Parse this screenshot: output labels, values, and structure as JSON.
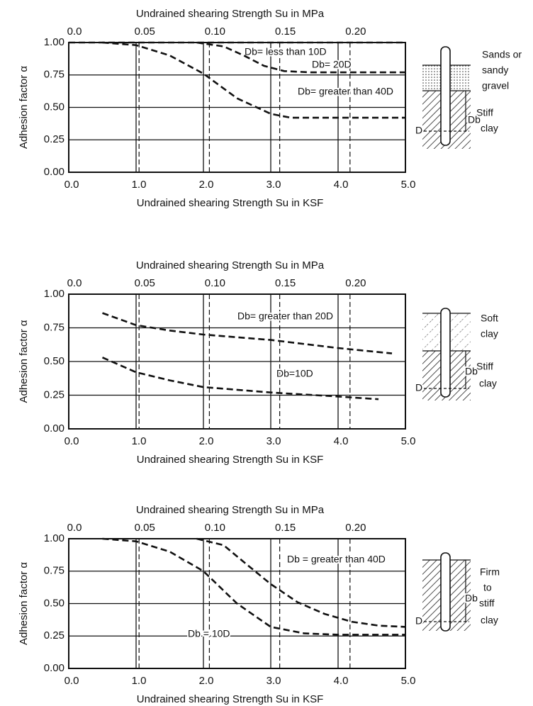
{
  "chart_data": [
    {
      "type": "line",
      "x_label": "Undrained shearing Strength Su in KSF",
      "x2_label": "Undrained shearing Strength Su in MPa",
      "y_label": "Adhesion factor α",
      "xlim": [
        0,
        5
      ],
      "xticks": [
        {
          "value": 0,
          "label": "0.0"
        },
        {
          "value": 1,
          "label": "1.0"
        },
        {
          "value": 2,
          "label": "2.0"
        },
        {
          "value": 3,
          "label": "3.0"
        },
        {
          "value": 4,
          "label": "4.0"
        },
        {
          "value": 5,
          "label": "5.0"
        }
      ],
      "x2lim": [
        0,
        0.2394
      ],
      "x2ticks": [
        {
          "value": 0,
          "label": "0.0"
        },
        0.05,
        {
          "value": 0.1,
          "label": "0.10"
        },
        0.15,
        {
          "value": 0.2,
          "label": "0.20"
        }
      ],
      "ylim": [
        0,
        1
      ],
      "yticks": [
        {
          "value": 0,
          "label": "0.00"
        },
        0.25,
        {
          "value": 0.5,
          "label": "0.50"
        },
        0.75,
        {
          "value": 1,
          "label": "1.00"
        }
      ],
      "grid": true,
      "series": [
        {
          "name": "Db= less than 10D",
          "color": "#111111",
          "x": [
            0,
            5
          ],
          "values": [
            1,
            1
          ]
        },
        {
          "name": "Db= 20D",
          "color": "#111111",
          "x": [
            1.9,
            2.3,
            2.6,
            2.9,
            3.2,
            3.6,
            5.0
          ],
          "values": [
            1.0,
            0.97,
            0.9,
            0.82,
            0.78,
            0.77,
            0.77
          ]
        },
        {
          "name": "Db= greater than 40D",
          "color": "#111111",
          "x": [
            0.5,
            1.0,
            1.5,
            2.0,
            2.5,
            3.0,
            3.3,
            5.0
          ],
          "values": [
            1.0,
            0.98,
            0.9,
            0.76,
            0.57,
            0.45,
            0.42,
            0.42
          ]
        }
      ],
      "side_labels": [
        "Sands or",
        "sandy",
        "gravel",
        "Stiff",
        "clay",
        "D",
        "Db"
      ]
    },
    {
      "type": "line",
      "x_label": "Undrained shearing Strength Su in KSF",
      "x2_label": "Undrained shearing Strength Su in MPa",
      "y_label": "Adhesion factor α",
      "xlim": [
        0,
        5
      ],
      "xticks": [
        {
          "value": 0,
          "label": "0.0"
        },
        {
          "value": 1,
          "label": "1.0"
        },
        {
          "value": 2,
          "label": "2.0"
        },
        {
          "value": 3,
          "label": "3.0"
        },
        {
          "value": 4,
          "label": "4.0"
        },
        {
          "value": 5,
          "label": "5.0"
        }
      ],
      "x2lim": [
        0,
        0.2394
      ],
      "x2ticks": [
        {
          "value": 0,
          "label": "0.0"
        },
        0.05,
        {
          "value": 0.1,
          "label": "0.10"
        },
        0.15,
        {
          "value": 0.2,
          "label": "0.20"
        }
      ],
      "ylim": [
        0,
        1
      ],
      "yticks": [
        {
          "value": 0,
          "label": "0.00"
        },
        0.25,
        {
          "value": 0.5,
          "label": "0.50"
        },
        0.75,
        {
          "value": 1,
          "label": "1.00"
        }
      ],
      "grid": true,
      "series": [
        {
          "name": "Db= greater than 20D",
          "color": "#111111",
          "x": [
            0.5,
            1.0,
            1.5,
            2.0,
            3.0,
            4.0,
            4.8
          ],
          "values": [
            0.86,
            0.77,
            0.73,
            0.7,
            0.66,
            0.6,
            0.56
          ]
        },
        {
          "name": "Db=10D",
          "color": "#111111",
          "x": [
            0.5,
            1.0,
            1.5,
            2.0,
            2.5,
            3.0,
            4.0,
            4.6
          ],
          "values": [
            0.53,
            0.42,
            0.36,
            0.31,
            0.29,
            0.27,
            0.24,
            0.22
          ]
        }
      ],
      "side_labels": [
        "Soft",
        "clay",
        "Stiff",
        "clay",
        "D",
        "Db"
      ]
    },
    {
      "type": "line",
      "x_label": "Undrained shearing Strength Su in KSF",
      "x2_label": "Undrained shearing Strength Su in MPa",
      "y_label": "Adhesion factor α",
      "xlim": [
        0,
        5
      ],
      "xticks": [
        {
          "value": 0,
          "label": "0.0"
        },
        {
          "value": 1,
          "label": "1.0"
        },
        {
          "value": 2,
          "label": "2.0"
        },
        {
          "value": 3,
          "label": "3.0"
        },
        {
          "value": 4,
          "label": "4.0"
        },
        {
          "value": 5,
          "label": "5.0"
        }
      ],
      "x2lim": [
        0,
        0.2394
      ],
      "x2ticks": [
        {
          "value": 0,
          "label": "0.0"
        },
        0.05,
        {
          "value": 0.1,
          "label": "0.10"
        },
        0.15,
        {
          "value": 0.2,
          "label": "0.20"
        }
      ],
      "ylim": [
        0,
        1
      ],
      "yticks": [
        {
          "value": 0,
          "label": "0.00"
        },
        0.25,
        {
          "value": 0.5,
          "label": "0.50"
        },
        0.75,
        {
          "value": 1,
          "label": "1.00"
        }
      ],
      "grid": true,
      "series": [
        {
          "name": "Db = greater than 40D",
          "color": "#111111",
          "x": [
            1.9,
            2.3,
            2.6,
            3.0,
            3.4,
            3.8,
            4.2,
            4.6,
            5.0
          ],
          "values": [
            1.0,
            0.95,
            0.82,
            0.65,
            0.51,
            0.42,
            0.36,
            0.33,
            0.32
          ]
        },
        {
          "name": "Db = 10D",
          "color": "#111111",
          "x": [
            0.5,
            1.0,
            1.5,
            2.0,
            2.5,
            3.0,
            3.5,
            4.0,
            5.0
          ],
          "values": [
            1.0,
            0.98,
            0.9,
            0.75,
            0.5,
            0.32,
            0.27,
            0.26,
            0.26
          ]
        }
      ],
      "side_labels": [
        "Firm",
        "to",
        "stiff",
        "clay",
        "D",
        "Db"
      ]
    }
  ]
}
